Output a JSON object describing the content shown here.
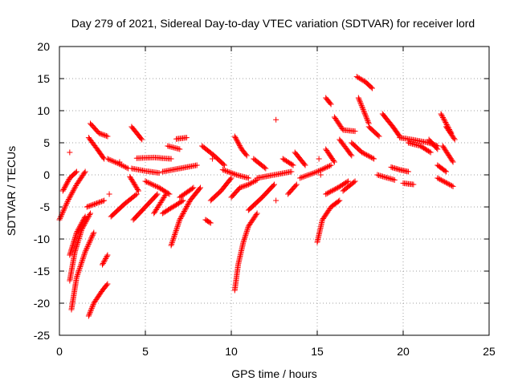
{
  "chart_data": {
    "type": "scatter",
    "marker": "plus",
    "color": "#ff0000",
    "title": "Day 279 of 2021, Sidereal Day-to-day VTEC variation (SDTVAR) for receiver lord",
    "xlabel": "GPS time / hours",
    "ylabel": "SDTVAR / TECUs",
    "xlim": [
      0,
      25
    ],
    "ylim": [
      -25,
      20
    ],
    "xticks": [
      0,
      5,
      10,
      15,
      20,
      25
    ],
    "yticks": [
      -25,
      -20,
      -15,
      -10,
      -5,
      0,
      5,
      10,
      15,
      20
    ],
    "grid": true,
    "tracks": [
      {
        "x": [
          0.0,
          0.5,
          1.0,
          1.5
        ],
        "y": [
          -7,
          -4,
          -1.5,
          0.5
        ]
      },
      {
        "x": [
          0.2,
          0.6,
          1.0
        ],
        "y": [
          -2.5,
          -0.5,
          0.5
        ]
      },
      {
        "x": [
          0.6,
          1.0,
          1.5
        ],
        "y": [
          -12.5,
          -9,
          -6.5
        ]
      },
      {
        "x": [
          0.6,
          0.9,
          1.3,
          1.8
        ],
        "y": [
          -16.5,
          -12,
          -8.5,
          -6
        ]
      },
      {
        "x": [
          0.7,
          1.0,
          1.5,
          2.0
        ],
        "y": [
          -21,
          -16,
          -12,
          -9
        ]
      },
      {
        "x": [
          1.7,
          2.0,
          2.5,
          2.8
        ],
        "y": [
          -22,
          -20,
          -18,
          -17
        ]
      },
      {
        "x": [
          2.5,
          2.8
        ],
        "y": [
          -14,
          -12.5
        ]
      },
      {
        "x": [
          1.8,
          2.3,
          2.8
        ],
        "y": [
          8,
          6.5,
          6
        ]
      },
      {
        "x": [
          1.7,
          2.2,
          2.6
        ],
        "y": [
          5.8,
          4,
          2.5
        ]
      },
      {
        "x": [
          1.6,
          2.1,
          2.6
        ],
        "y": [
          -5,
          -4.5,
          -4
        ]
      },
      {
        "x": [
          2.8,
          3.4,
          4.0
        ],
        "y": [
          2.5,
          1.8,
          1.0
        ]
      },
      {
        "x": [
          3.0,
          3.8,
          4.5
        ],
        "y": [
          -6.5,
          -4.5,
          -3
        ]
      },
      {
        "x": [
          4.2,
          4.8
        ],
        "y": [
          7.5,
          5.5
        ]
      },
      {
        "x": [
          4.1,
          4.6
        ],
        "y": [
          -0.3,
          -2.5
        ]
      },
      {
        "x": [
          4.3,
          5.0,
          5.7
        ],
        "y": [
          -7,
          -5,
          -3
        ]
      },
      {
        "x": [
          5.5,
          6.2
        ],
        "y": [
          -6,
          -3
        ]
      },
      {
        "x": [
          4.5,
          5.5,
          6.5
        ],
        "y": [
          2.6,
          2.7,
          2.5
        ]
      },
      {
        "x": [
          4.2,
          5.0,
          5.8
        ],
        "y": [
          1.0,
          0.6,
          0.3
        ]
      },
      {
        "x": [
          5.0,
          5.8,
          6.4
        ],
        "y": [
          -1,
          -2,
          -3
        ]
      },
      {
        "x": [
          6.0,
          6.6,
          7.2
        ],
        "y": [
          -6,
          -5,
          -4
        ]
      },
      {
        "x": [
          6.5,
          7.0,
          7.6,
          8.2
        ],
        "y": [
          -11,
          -7,
          -4,
          -2
        ]
      },
      {
        "x": [
          7.0,
          7.8
        ],
        "y": [
          -3.5,
          -2
        ]
      },
      {
        "x": [
          6.8,
          7.4
        ],
        "y": [
          5.6,
          5.8
        ]
      },
      {
        "x": [
          6.3,
          7.0
        ],
        "y": [
          4.5,
          4.0
        ]
      },
      {
        "x": [
          6.0,
          7.0,
          8.0
        ],
        "y": [
          0.5,
          1.0,
          1.5
        ]
      },
      {
        "x": [
          8.3,
          9.0,
          9.6
        ],
        "y": [
          4.5,
          3.0,
          1.5
        ]
      },
      {
        "x": [
          8.5,
          8.8
        ],
        "y": [
          -7,
          -7.5
        ]
      },
      {
        "x": [
          8.8,
          9.4,
          10.0
        ],
        "y": [
          -4,
          -2.5,
          -0.5
        ]
      },
      {
        "x": [
          10.0,
          10.5,
          11.0,
          11.5
        ],
        "y": [
          -3.5,
          -2,
          -1.5,
          -0.8
        ]
      },
      {
        "x": [
          10.2,
          10.4,
          10.7,
          11.0,
          11.5
        ],
        "y": [
          -18,
          -14,
          -10.5,
          -8,
          -6
        ]
      },
      {
        "x": [
          10.2,
          10.6,
          10.9
        ],
        "y": [
          6,
          4,
          3
        ]
      },
      {
        "x": [
          9.5,
          10.3,
          11.0
        ],
        "y": [
          0.8,
          0.0,
          -0.5
        ]
      },
      {
        "x": [
          11.3,
          12.0
        ],
        "y": [
          2.5,
          1.0
        ]
      },
      {
        "x": [
          11.0,
          11.8,
          12.5
        ],
        "y": [
          -5.5,
          -3.5,
          -1.5
        ]
      },
      {
        "x": [
          11.5,
          12.5,
          13.5
        ],
        "y": [
          -0.5,
          0.0,
          0.5
        ]
      },
      {
        "x": [
          13.0,
          13.6
        ],
        "y": [
          2.5,
          1.5
        ]
      },
      {
        "x": [
          13.3,
          13.8
        ],
        "y": [
          -3.0,
          -1.5
        ]
      },
      {
        "x": [
          13.7,
          14.3
        ],
        "y": [
          3.5,
          1.5
        ]
      },
      {
        "x": [
          14.0,
          15.0,
          15.8
        ],
        "y": [
          -0.5,
          0.5,
          1.5
        ]
      },
      {
        "x": [
          15.0,
          15.3,
          15.8,
          16.3
        ],
        "y": [
          -10.5,
          -7,
          -5,
          -4
        ]
      },
      {
        "x": [
          15.5,
          16.2,
          16.8
        ],
        "y": [
          -3,
          -2,
          -1
        ]
      },
      {
        "x": [
          16.5,
          17.2
        ],
        "y": [
          -2.5,
          -1
        ]
      },
      {
        "x": [
          15.5,
          15.8
        ],
        "y": [
          12,
          11
        ]
      },
      {
        "x": [
          15.5,
          16.0
        ],
        "y": [
          4,
          2
        ]
      },
      {
        "x": [
          16.0,
          16.5,
          17.2
        ],
        "y": [
          9,
          7,
          6.8
        ]
      },
      {
        "x": [
          16.3,
          17.0
        ],
        "y": [
          5.5,
          3
        ]
      },
      {
        "x": [
          17.3,
          17.8,
          18.2
        ],
        "y": [
          15.3,
          14.5,
          13.5
        ]
      },
      {
        "x": [
          17.4,
          18.0
        ],
        "y": [
          12,
          8
        ]
      },
      {
        "x": [
          17.0,
          17.6,
          18.3
        ],
        "y": [
          5,
          3.5,
          2.5
        ]
      },
      {
        "x": [
          18.0,
          18.6
        ],
        "y": [
          7.5,
          6
        ]
      },
      {
        "x": [
          18.8,
          19.4,
          19.8
        ],
        "y": [
          9.5,
          7.5,
          6
        ]
      },
      {
        "x": [
          18.5,
          19.5
        ],
        "y": [
          0.0,
          -0.8
        ]
      },
      {
        "x": [
          19.3,
          19.8,
          20.3
        ],
        "y": [
          1.2,
          0.8,
          0.5
        ]
      },
      {
        "x": [
          19.8,
          20.5,
          21.5,
          22.0
        ],
        "y": [
          5.8,
          5.5,
          5.0,
          4.5
        ]
      },
      {
        "x": [
          20.3,
          21.0,
          21.6
        ],
        "y": [
          5.0,
          4.5,
          3.5
        ]
      },
      {
        "x": [
          21.5,
          22.0
        ],
        "y": [
          5.5,
          4.0
        ]
      },
      {
        "x": [
          20.0,
          20.6
        ],
        "y": [
          -1.3,
          -1.5
        ]
      },
      {
        "x": [
          22.0,
          22.5
        ],
        "y": [
          1.5,
          0.5
        ]
      },
      {
        "x": [
          22.2,
          22.8
        ],
        "y": [
          9.5,
          6.5
        ]
      },
      {
        "x": [
          22.5,
          23.0
        ],
        "y": [
          7.5,
          5.5
        ]
      },
      {
        "x": [
          22.0,
          22.9
        ],
        "y": [
          -0.5,
          -1.8
        ]
      },
      {
        "x": [
          22.3,
          22.9
        ],
        "y": [
          4.5,
          2.0
        ]
      }
    ],
    "isolated": [
      {
        "x": 0.6,
        "y": 3.5
      },
      {
        "x": 2.9,
        "y": -3.0
      },
      {
        "x": 3.5,
        "y": 2.0
      },
      {
        "x": 8.9,
        "y": 2.5
      },
      {
        "x": 12.6,
        "y": 8.6
      },
      {
        "x": 12.6,
        "y": -4.0
      },
      {
        "x": 15.1,
        "y": 2.5
      },
      {
        "x": 15.2,
        "y": 0.0
      },
      {
        "x": 21.5,
        "y": 5.0
      }
    ]
  }
}
